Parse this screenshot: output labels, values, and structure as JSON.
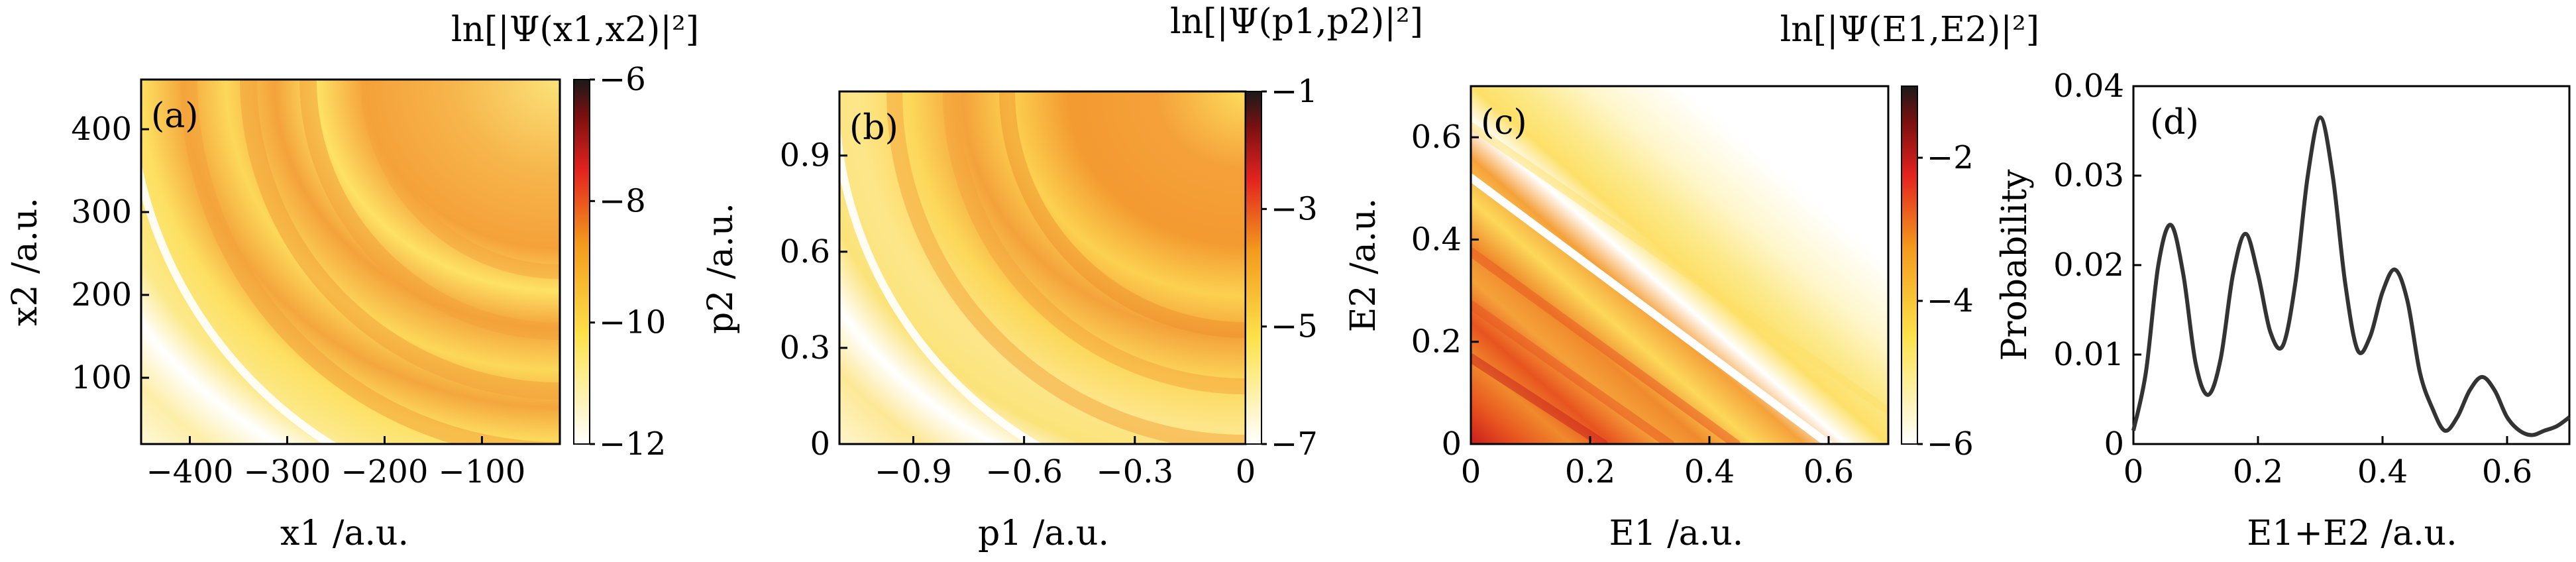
{
  "chart_data": [
    {
      "type": "heatmap",
      "panel_label": "(a)",
      "title": "ln[|Ψ(x1,x2)|²]",
      "xlabel": "x1 /a.u.",
      "ylabel": "x2 /a.u.",
      "xlim": [
        -450,
        -20
      ],
      "ylim": [
        20,
        460
      ],
      "xticks": [
        -400,
        -300,
        -200,
        -100
      ],
      "yticks": [
        100,
        200,
        300,
        400
      ],
      "colorbar": {
        "range": [
          -12,
          -6
        ],
        "ticks": [
          -12,
          -10,
          -8,
          -6
        ]
      },
      "colors": {
        "low": "#ffffff",
        "mid_low": "#fde24a",
        "mid": "#f39a1c",
        "mid_high": "#e4231f",
        "high": "#1a1a1a"
      }
    },
    {
      "type": "heatmap",
      "panel_label": "(b)",
      "title": "ln[|Ψ(p1,p2)|²]",
      "xlabel": "p1 /a.u.",
      "ylabel": "p2 /a.u.",
      "xlim": [
        -1.1,
        0
      ],
      "ylim": [
        0,
        1.1
      ],
      "xticks": [
        -0.9,
        -0.6,
        -0.3,
        0
      ],
      "yticks": [
        0,
        0.3,
        0.6,
        0.9
      ],
      "colorbar": {
        "range": [
          -7,
          -1
        ],
        "ticks": [
          -7,
          -5,
          -3,
          -1
        ]
      }
    },
    {
      "type": "heatmap",
      "panel_label": "(c)",
      "title": "ln[|Ψ(E1,E2)|²]",
      "xlabel": "E1 /a.u.",
      "ylabel": "E2 /a.u.",
      "xlim": [
        0,
        0.7
      ],
      "ylim": [
        0,
        0.7
      ],
      "xticks": [
        0,
        0.2,
        0.4,
        0.6
      ],
      "yticks": [
        0,
        0.2,
        0.4,
        0.6
      ],
      "colorbar": {
        "range": [
          -6,
          -1
        ],
        "ticks": [
          -6,
          -4,
          -2
        ]
      }
    },
    {
      "type": "line",
      "panel_label": "(d)",
      "xlabel": "E1+E2 /a.u.",
      "ylabel": "Probability",
      "xlim": [
        0,
        0.7
      ],
      "ylim": [
        0,
        0.04
      ],
      "xticks": [
        0,
        0.2,
        0.4,
        0.6
      ],
      "yticks": [
        0,
        0.01,
        0.02,
        0.03,
        0.04
      ],
      "series": [
        {
          "x": [
            0,
            0.02,
            0.04,
            0.06,
            0.08,
            0.1,
            0.12,
            0.14,
            0.16,
            0.18,
            0.2,
            0.22,
            0.24,
            0.26,
            0.28,
            0.3,
            0.32,
            0.34,
            0.36,
            0.38,
            0.4,
            0.42,
            0.44,
            0.46,
            0.48,
            0.5,
            0.52,
            0.54,
            0.56,
            0.58,
            0.6,
            0.62,
            0.64,
            0.66,
            0.68,
            0.7
          ],
          "y": [
            0.0015,
            0.008,
            0.02,
            0.0245,
            0.019,
            0.009,
            0.0055,
            0.0095,
            0.019,
            0.0235,
            0.019,
            0.0125,
            0.011,
            0.018,
            0.03,
            0.0365,
            0.03,
            0.018,
            0.0105,
            0.012,
            0.017,
            0.0195,
            0.016,
            0.008,
            0.004,
            0.0015,
            0.003,
            0.006,
            0.0075,
            0.006,
            0.003,
            0.0015,
            0.001,
            0.0015,
            0.002,
            0.003
          ]
        }
      ]
    }
  ]
}
